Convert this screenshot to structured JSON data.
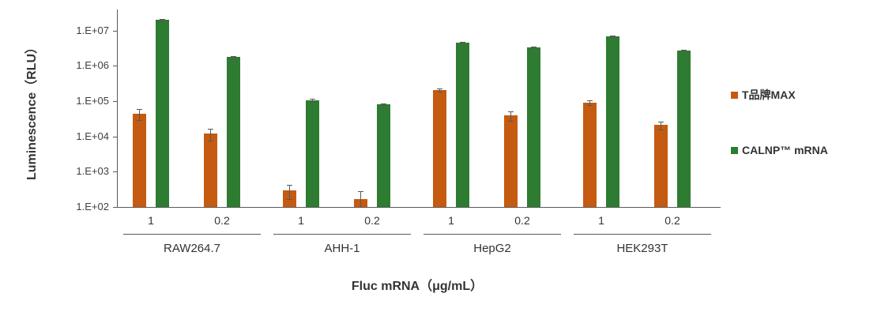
{
  "chart_data": {
    "type": "bar",
    "title": "",
    "ylabel": "Luminescence（RLU）",
    "xlabel": "Fluc mRNA（μg/mL）",
    "y_scale": "log",
    "ylim": [
      100,
      40000000
    ],
    "y_ticks": [
      "1.E+02",
      "1.E+03",
      "1.E+04",
      "1.E+05",
      "1.E+06",
      "1.E+07"
    ],
    "grid": "off",
    "legend_position": "right",
    "series": [
      {
        "name": "T品牌MAX",
        "color": "#C55A11"
      },
      {
        "name": "CALNP™ mRNA",
        "color": "#2E7B32"
      }
    ],
    "axis_color": "#595959",
    "groups": [
      {
        "label": "RAW264.7",
        "clusters": [
          {
            "dose": "1",
            "bars": [
              {
                "series": "T品牌MAX",
                "value": 45000,
                "err": 0.35
              },
              {
                "series": "CALNP™ mRNA",
                "value": 20000000,
                "err": 0.06
              }
            ]
          },
          {
            "dose": "0.2",
            "bars": [
              {
                "series": "T品牌MAX",
                "value": 12000,
                "err": 0.35
              },
              {
                "series": "CALNP™ mRNA",
                "value": 1800000,
                "err": 0.05
              }
            ]
          }
        ]
      },
      {
        "label": "AHH-1",
        "clusters": [
          {
            "dose": "1",
            "bars": [
              {
                "series": "T品牌MAX",
                "value": 300,
                "err": 0.45
              },
              {
                "series": "CALNP™ mRNA",
                "value": 105000,
                "err": 0.1
              }
            ]
          },
          {
            "dose": "0.2",
            "bars": [
              {
                "series": "T品牌MAX",
                "value": 165,
                "err": 0.7
              },
              {
                "series": "CALNP™ mRNA",
                "value": 80000,
                "err": 0.08
              }
            ]
          }
        ]
      },
      {
        "label": "HepG2",
        "clusters": [
          {
            "dose": "1",
            "bars": [
              {
                "series": "T品牌MAX",
                "value": 210000,
                "err": 0.1
              },
              {
                "series": "CALNP™ mRNA",
                "value": 4500000,
                "err": 0.07
              }
            ]
          },
          {
            "dose": "0.2",
            "bars": [
              {
                "series": "T品牌MAX",
                "value": 40000,
                "err": 0.3
              },
              {
                "series": "CALNP™ mRNA",
                "value": 3300000,
                "err": 0.05
              }
            ]
          }
        ]
      },
      {
        "label": "HEK293T",
        "clusters": [
          {
            "dose": "1",
            "bars": [
              {
                "series": "T品牌MAX",
                "value": 92000,
                "err": 0.15
              },
              {
                "series": "CALNP™ mRNA",
                "value": 7000000,
                "err": 0.05
              }
            ]
          },
          {
            "dose": "0.2",
            "bars": [
              {
                "series": "T品牌MAX",
                "value": 21000,
                "err": 0.25
              },
              {
                "series": "CALNP™ mRNA",
                "value": 2700000,
                "err": 0.08
              }
            ]
          }
        ]
      }
    ]
  }
}
